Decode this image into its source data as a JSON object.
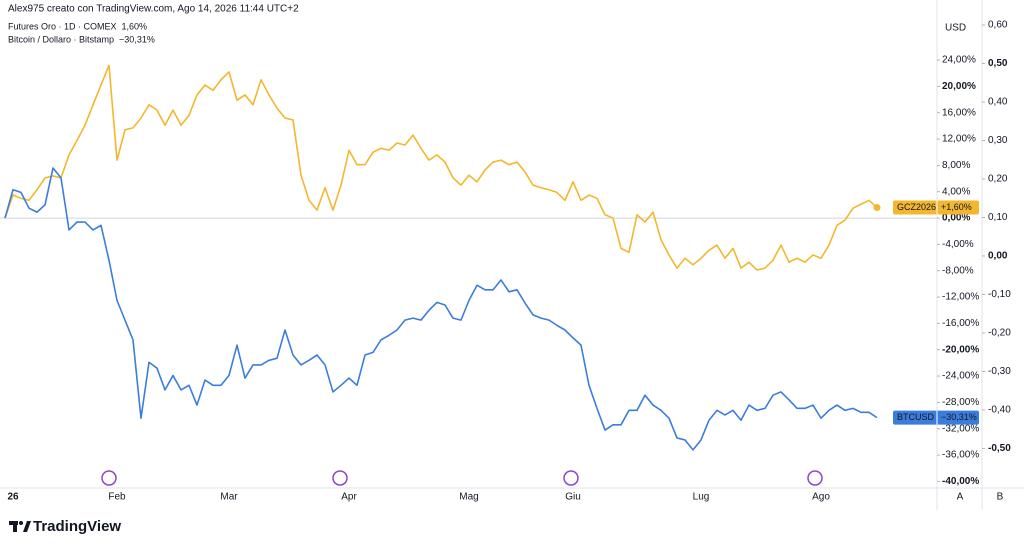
{
  "header": {
    "credit": "Alex975 creato con TradingView.com, Ago 14, 2026 11:44 UTC+2"
  },
  "logo": "TradingView",
  "chart_data": {
    "type": "line",
    "currency": "USD",
    "categories": [
      null,
      "26",
      null,
      null,
      null,
      null,
      null,
      null,
      null,
      null,
      null,
      null,
      null,
      null,
      "Feb",
      null,
      null,
      null,
      null,
      null,
      null,
      null,
      null,
      null,
      null,
      null,
      null,
      null,
      "Mar",
      null,
      null,
      null,
      null,
      null,
      null,
      null,
      null,
      null,
      null,
      null,
      null,
      null,
      null,
      "Apr",
      null,
      null,
      null,
      null,
      null,
      null,
      null,
      null,
      null,
      null,
      null,
      null,
      null,
      null,
      "Mag",
      null,
      null,
      null,
      null,
      null,
      null,
      null,
      null,
      null,
      null,
      null,
      null,
      "Giu",
      null,
      null,
      null,
      null,
      null,
      null,
      null,
      null,
      null,
      null,
      null,
      null,
      null,
      null,
      null,
      "Lug",
      null,
      null,
      null,
      null,
      null,
      null,
      null,
      null,
      null,
      null,
      null,
      null,
      null,
      null,
      "Ago",
      null,
      null,
      null,
      null,
      null,
      null,
      null
    ],
    "series": [
      {
        "name": "Futures Oro · 1D · COMEX",
        "symbol": "GCZ2026",
        "color": "#f2b72e",
        "legend_label": "1,60%",
        "tag_label": "+1,60%",
        "values": [
          0,
          3.5,
          3.0,
          2.7,
          4.3,
          6.1,
          6.4,
          6.1,
          9.6,
          11.8,
          14.1,
          17.2,
          20.2,
          23.2,
          8.8,
          13.4,
          13.7,
          15.2,
          17.2,
          16.4,
          14.1,
          16.4,
          14.1,
          15.6,
          18.7,
          20.2,
          19.4,
          21.0,
          22.2,
          17.9,
          18.7,
          17.2,
          21.0,
          18.7,
          16.7,
          15.2,
          14.9,
          6.5,
          2.7,
          1.2,
          4.6,
          1.2,
          5.0,
          10.3,
          8.1,
          8.1,
          10.0,
          10.6,
          10.3,
          11.4,
          11.1,
          12.6,
          10.6,
          8.8,
          9.6,
          8.5,
          6.1,
          5.0,
          6.5,
          5.5,
          7.3,
          8.5,
          8.8,
          8.1,
          8.5,
          7.0,
          5.0,
          4.6,
          4.3,
          3.9,
          2.7,
          5.5,
          2.7,
          3.5,
          3.0,
          0.5,
          0,
          -4.6,
          -5.2,
          0.5,
          -0.6,
          0.9,
          -3.3,
          -5.6,
          -7.6,
          -6.1,
          -7.1,
          -6.1,
          -4.9,
          -4.1,
          -6.1,
          -4.6,
          -7.6,
          -6.7,
          -7.9,
          -7.6,
          -6.4,
          -4.1,
          -6.7,
          -6.1,
          -6.7,
          -5.6,
          -6.1,
          -4.1,
          -1.1,
          -0.3,
          1.5,
          2.1,
          2.7,
          1.6
        ]
      },
      {
        "name": "Bitcoin / Dollaro · Bitstamp",
        "symbol": "BTCUSD",
        "color": "#3b7ddd",
        "legend_label": "−30,31%",
        "tag_label": "−30,31%",
        "values": [
          0,
          4.3,
          3.9,
          1.5,
          0.9,
          2.0,
          7.6,
          6.1,
          -1.8,
          -0.6,
          -0.6,
          -1.8,
          -1.1,
          -6.4,
          -12.5,
          -15.5,
          -18.5,
          -30.4,
          -21.9,
          -22.8,
          -26.1,
          -23.9,
          -26.1,
          -25.4,
          -28.4,
          -24.6,
          -25.4,
          -25.4,
          -23.9,
          -19.3,
          -24.3,
          -22.3,
          -22.3,
          -21.6,
          -21.3,
          -17.0,
          -20.8,
          -22.3,
          -21.6,
          -20.8,
          -22.3,
          -26.4,
          -25.4,
          -24.3,
          -25.4,
          -20.8,
          -20.4,
          -18.5,
          -17.8,
          -17.0,
          -15.5,
          -15.2,
          -15.5,
          -14.0,
          -12.8,
          -13.2,
          -15.2,
          -15.5,
          -12.5,
          -10.2,
          -10.9,
          -10.9,
          -9.4,
          -11.2,
          -10.9,
          -12.9,
          -14.7,
          -15.2,
          -15.5,
          -16.3,
          -17.0,
          -18.2,
          -19.3,
          -25.4,
          -28.9,
          -32.2,
          -31.4,
          -31.4,
          -29.2,
          -29.2,
          -26.9,
          -28.4,
          -29.2,
          -30.4,
          -33.4,
          -33.7,
          -35.2,
          -33.7,
          -30.7,
          -29.2,
          -29.9,
          -29.2,
          -30.7,
          -28.4,
          -29.2,
          -28.9,
          -26.9,
          -26.4,
          -27.6,
          -28.9,
          -28.9,
          -28.4,
          -30.4,
          -29.2,
          -28.4,
          -29.2,
          -28.9,
          -29.5,
          -29.5,
          -30.31
        ]
      }
    ],
    "ylim": [
      -41.3,
      31.6
    ],
    "yticks": [
      {
        "value": 24,
        "label": "24,00%"
      },
      {
        "value": 20,
        "label": "20,00%"
      },
      {
        "value": 16,
        "label": "16,00%"
      },
      {
        "value": 12,
        "label": "12,00%"
      },
      {
        "value": 8,
        "label": "8,00%"
      },
      {
        "value": 4,
        "label": "4,00%"
      },
      {
        "value": 0,
        "label": "0,00%"
      },
      {
        "value": -4,
        "label": "-4,00%"
      },
      {
        "value": -8,
        "label": "-8,00%"
      },
      {
        "value": -12,
        "label": "-12,00%"
      },
      {
        "value": -16,
        "label": "-16,00%"
      },
      {
        "value": -20,
        "label": "-20,00%"
      },
      {
        "value": -24,
        "label": "-24,00%"
      },
      {
        "value": -28,
        "label": "-28,00%"
      },
      {
        "value": -32,
        "label": "-32,00%"
      },
      {
        "value": -36,
        "label": "-36,00%"
      },
      {
        "value": -40,
        "label": "-40,00%"
      }
    ],
    "y2lim": [
      -0.608,
      0.639
    ],
    "y2ticks": [
      {
        "value": 0.6,
        "label": "0,60"
      },
      {
        "value": 0.5,
        "label": "0,50"
      },
      {
        "value": 0.4,
        "label": "0,40"
      },
      {
        "value": 0.3,
        "label": "0,30"
      },
      {
        "value": 0.2,
        "label": "0,20"
      },
      {
        "value": 0.1,
        "label": "0,10"
      },
      {
        "value": 0,
        "label": "0,00"
      },
      {
        "value": -0.1,
        "label": "-0,10"
      },
      {
        "value": -0.2,
        "label": "-0,20"
      },
      {
        "value": -0.3,
        "label": "-0,30"
      },
      {
        "value": -0.4,
        "label": "-0,40"
      },
      {
        "value": -0.5,
        "label": "-0,50"
      }
    ],
    "scale_buttons": [
      "A",
      "B"
    ],
    "grid": false
  }
}
